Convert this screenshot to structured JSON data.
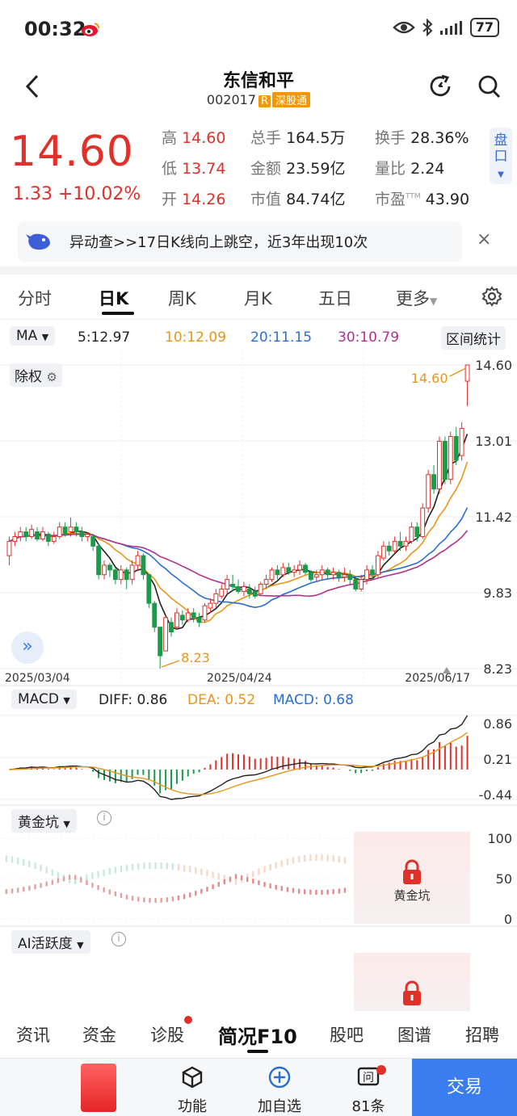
{
  "status": {
    "time": "00:32",
    "battery": "77"
  },
  "header": {
    "name": "东信和平",
    "code": "002017",
    "r_badge": "R",
    "sgt_badge": "深股通"
  },
  "quote": {
    "price": "14.60",
    "change": "1.33 +10.02%",
    "cells": [
      {
        "k": "高",
        "v": "14.60",
        "tone": "red"
      },
      {
        "k": "总手",
        "v": "164.5万",
        "tone": "dark"
      },
      {
        "k": "换手",
        "v": "28.36%",
        "tone": "dark"
      },
      {
        "k": "低",
        "v": "13.74",
        "tone": "red"
      },
      {
        "k": "金额",
        "v": "23.59亿",
        "tone": "dark"
      },
      {
        "k": "量比",
        "v": "2.24",
        "tone": "dark"
      },
      {
        "k": "开",
        "v": "14.26",
        "tone": "red"
      },
      {
        "k": "市值",
        "v": "84.74亿",
        "tone": "dark"
      },
      {
        "k": "市盈",
        "v": "43.90",
        "tone": "dark",
        "sup": "TTM"
      }
    ],
    "pankou": "盘口"
  },
  "alert": {
    "text": "异动查>>17日K线向上跳空，近3年出现10次",
    "close": "×"
  },
  "tabs": [
    "分时",
    "日K",
    "周K",
    "月K",
    "五日",
    "更多"
  ],
  "ma_bar": {
    "select": "MA",
    "items": [
      {
        "label": "5:12.97",
        "color": "#222222"
      },
      {
        "label": "10:12.09",
        "color": "#e8961a"
      },
      {
        "label": "20:11.15",
        "color": "#2a6fd0"
      },
      {
        "label": "30:10.79",
        "color": "#b0308e"
      }
    ],
    "range_stat": "区间统计"
  },
  "kline": {
    "chuquan": "除权",
    "y_ticks": [
      "14.60",
      "13.01",
      "11.42",
      "9.83",
      "8.23"
    ],
    "x_ticks": [
      "2025/03/04",
      "2025/04/24",
      "2025/06/17"
    ],
    "high_label": "14.60",
    "low_label": "8.23"
  },
  "chart_data": {
    "type": "candlestick",
    "ylim": [
      8.23,
      14.6
    ],
    "dates": [
      "2025/03/04",
      "2025/04/24",
      "2025/06/17"
    ],
    "ma": {
      "MA5": 12.97,
      "MA10": 12.09,
      "MA20": 11.15,
      "MA30": 10.79
    },
    "period_high": 14.6,
    "period_low": 8.23,
    "candles": [
      [
        10.6,
        10.9,
        10.4,
        11.0
      ],
      [
        10.9,
        11.0,
        10.8,
        11.1
      ],
      [
        11.0,
        11.1,
        10.9,
        11.2
      ],
      [
        11.1,
        11.0,
        10.9,
        11.2
      ],
      [
        11.0,
        11.15,
        10.95,
        11.25
      ],
      [
        11.1,
        10.95,
        10.9,
        11.2
      ],
      [
        10.95,
        11.1,
        10.9,
        11.2
      ],
      [
        11.05,
        10.9,
        10.8,
        11.1
      ],
      [
        10.9,
        11.0,
        10.85,
        11.1
      ],
      [
        11.0,
        11.2,
        10.95,
        11.3
      ],
      [
        11.2,
        11.05,
        11.0,
        11.3
      ],
      [
        11.1,
        11.2,
        11.0,
        11.4
      ],
      [
        11.2,
        11.1,
        11.0,
        11.3
      ],
      [
        11.1,
        11.0,
        10.9,
        11.2
      ],
      [
        11.0,
        11.05,
        10.9,
        11.1
      ],
      [
        11.0,
        10.8,
        10.7,
        11.05
      ],
      [
        10.8,
        10.2,
        10.1,
        10.85
      ],
      [
        10.2,
        10.4,
        10.1,
        10.5
      ],
      [
        10.4,
        10.3,
        10.15,
        10.45
      ],
      [
        10.3,
        10.1,
        10.0,
        10.35
      ],
      [
        10.1,
        10.3,
        10.0,
        10.4
      ],
      [
        10.3,
        10.1,
        9.9,
        10.35
      ],
      [
        10.1,
        10.4,
        10.0,
        10.5
      ],
      [
        10.4,
        10.6,
        10.3,
        10.7
      ],
      [
        10.6,
        10.2,
        10.1,
        10.65
      ],
      [
        10.2,
        9.6,
        9.5,
        10.2
      ],
      [
        9.6,
        9.1,
        9.0,
        9.65
      ],
      [
        9.1,
        8.5,
        8.23,
        9.1
      ],
      [
        8.6,
        9.3,
        8.6,
        9.35
      ],
      [
        9.2,
        9.0,
        8.9,
        9.3
      ],
      [
        9.1,
        9.4,
        9.05,
        9.5
      ],
      [
        9.35,
        9.25,
        9.15,
        9.45
      ],
      [
        9.25,
        9.4,
        9.2,
        9.5
      ],
      [
        9.4,
        9.3,
        9.2,
        9.5
      ],
      [
        9.3,
        9.2,
        9.1,
        9.4
      ],
      [
        9.25,
        9.55,
        9.2,
        9.6
      ],
      [
        9.5,
        9.6,
        9.4,
        9.7
      ],
      [
        9.6,
        9.8,
        9.5,
        9.9
      ],
      [
        9.75,
        9.9,
        9.7,
        10.0
      ],
      [
        9.9,
        10.1,
        9.8,
        10.2
      ],
      [
        10.0,
        9.95,
        9.85,
        10.2
      ],
      [
        9.95,
        9.85,
        9.8,
        10.1
      ],
      [
        9.85,
        9.95,
        9.75,
        10.05
      ],
      [
        9.9,
        9.8,
        9.7,
        10.0
      ],
      [
        9.85,
        9.75,
        9.7,
        9.95
      ],
      [
        9.8,
        10.0,
        9.75,
        10.05
      ],
      [
        10.0,
        10.1,
        9.9,
        10.2
      ],
      [
        10.1,
        10.3,
        10.05,
        10.35
      ],
      [
        10.3,
        10.2,
        10.1,
        10.4
      ],
      [
        10.2,
        10.35,
        10.15,
        10.45
      ],
      [
        10.35,
        10.25,
        10.2,
        10.45
      ],
      [
        10.25,
        10.3,
        10.15,
        10.4
      ],
      [
        10.3,
        10.4,
        10.2,
        10.5
      ],
      [
        10.4,
        10.25,
        10.2,
        10.45
      ],
      [
        10.25,
        10.1,
        10.05,
        10.3
      ],
      [
        10.15,
        10.2,
        10.05,
        10.3
      ],
      [
        10.2,
        10.3,
        10.1,
        10.4
      ],
      [
        10.3,
        10.2,
        10.1,
        10.35
      ],
      [
        10.2,
        10.25,
        10.1,
        10.35
      ],
      [
        10.25,
        10.15,
        10.05,
        10.3
      ],
      [
        10.15,
        10.2,
        10.05,
        10.35
      ],
      [
        10.2,
        10.1,
        10.0,
        10.3
      ],
      [
        10.1,
        9.9,
        9.85,
        10.15
      ],
      [
        9.9,
        10.1,
        9.85,
        10.2
      ],
      [
        10.1,
        10.3,
        10.0,
        10.4
      ],
      [
        10.3,
        10.2,
        10.1,
        10.4
      ],
      [
        10.2,
        10.6,
        10.15,
        10.7
      ],
      [
        10.55,
        10.8,
        10.5,
        10.9
      ],
      [
        10.8,
        10.7,
        10.6,
        10.9
      ],
      [
        10.7,
        10.9,
        10.65,
        11.0
      ],
      [
        10.9,
        10.8,
        10.7,
        11.1
      ],
      [
        10.8,
        10.9,
        10.7,
        11.0
      ],
      [
        10.9,
        11.2,
        10.85,
        11.3
      ],
      [
        11.2,
        11.0,
        10.9,
        11.3
      ],
      [
        11.0,
        11.6,
        10.95,
        11.7
      ],
      [
        11.6,
        12.3,
        11.5,
        12.4
      ],
      [
        12.3,
        12.0,
        11.9,
        12.5
      ],
      [
        12.0,
        13.0,
        11.9,
        13.1
      ],
      [
        13.0,
        12.2,
        12.1,
        13.1
      ],
      [
        12.2,
        13.1,
        12.1,
        13.2
      ],
      [
        13.1,
        12.6,
        12.5,
        13.3
      ],
      [
        12.7,
        13.27,
        12.6,
        13.4
      ],
      [
        14.26,
        14.6,
        13.74,
        14.6
      ]
    ],
    "macd": {
      "DIFF": 0.86,
      "DEA": 0.52,
      "MACD": 0.68,
      "y_ticks": [
        "0.86",
        "0.21",
        "-0.44"
      ]
    },
    "huangjinkeng": {
      "y_ticks": [
        "100",
        "50",
        "0"
      ]
    }
  },
  "macd_bar": {
    "select": "MACD",
    "diff": "DIFF: 0.86",
    "dea": "DEA: 0.52",
    "macd": "MACD: 0.68"
  },
  "hjk": {
    "select": "黄金坑",
    "lock_label": "黄金坑"
  },
  "ai": {
    "select": "AI活跃度"
  },
  "bottom_tabs": [
    "资讯",
    "资金",
    "诊股",
    "简况F10",
    "股吧",
    "图谱",
    "招聘"
  ],
  "toolbar": {
    "func": "功能",
    "add": "加自选",
    "count": "81条",
    "trade": "交易"
  },
  "colors": {
    "red": "#e0302a",
    "green": "#1a9a4a",
    "blue": "#3a7df0"
  }
}
